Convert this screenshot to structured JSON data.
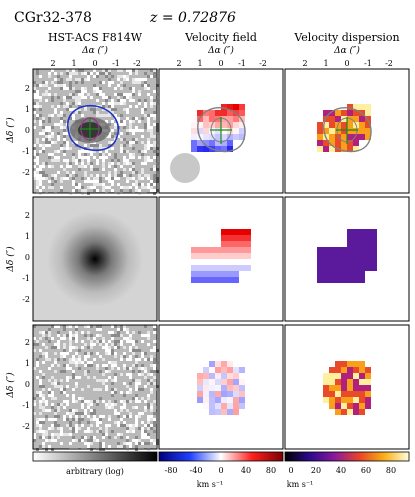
{
  "figure": {
    "object": "CGr32-378",
    "redshift": "z = 0.72876",
    "columns": [
      {
        "title": "HST-ACS F814W",
        "xlabel": "Δα (″)"
      },
      {
        "title": "Velocity field",
        "xlabel": "Δα (″)"
      },
      {
        "title": "Velocity dispersion",
        "xlabel": "Δα (″)"
      }
    ],
    "ylabel": "Δδ (″)",
    "x_ticks": [
      "2",
      "1",
      "0",
      "-1",
      "-2"
    ],
    "y_ticks": [
      "2",
      "1",
      "0",
      "-1",
      "-2"
    ],
    "colorbars": [
      {
        "label": "arbitrary (log)",
        "ticks": []
      },
      {
        "label": "km s⁻¹",
        "ticks": [
          "-80",
          "-40",
          "0",
          "40",
          "80"
        ],
        "range": [
          -100,
          100
        ],
        "colormap": "seismic"
      },
      {
        "label": "km s⁻¹",
        "ticks": [
          "0",
          "20",
          "40",
          "60",
          "80"
        ],
        "range": [
          0,
          100
        ],
        "colormap": "thermal"
      }
    ],
    "colors": {
      "contour_blue": "#1f35c8",
      "contour_gray": "#808080",
      "axis_green": "#1a8a1a",
      "beam": "#c8c8c8"
    }
  }
}
